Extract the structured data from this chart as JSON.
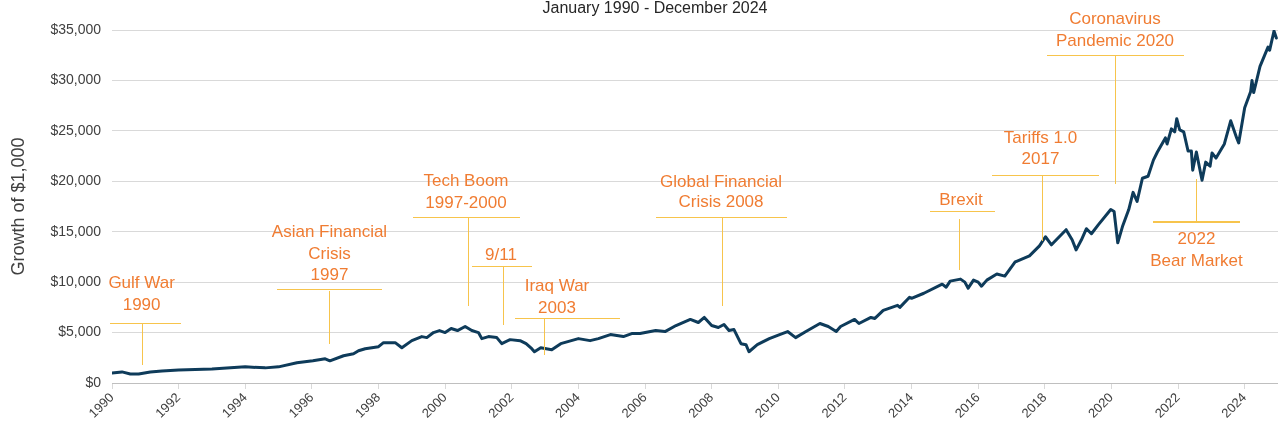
{
  "chart_data": {
    "type": "line",
    "subtitle": "January 1990 - December 2024",
    "ylabel": "Growth of $1,000",
    "x": [
      1990.0,
      1990.3,
      1990.55,
      1990.8,
      1991.15,
      1991.5,
      1992.0,
      1993.0,
      1994.0,
      1994.6,
      1995.0,
      1995.55,
      1996.03,
      1996.4,
      1996.54,
      1996.95,
      1997.25,
      1997.4,
      1997.6,
      1998.0,
      1998.15,
      1998.5,
      1998.7,
      1999.0,
      1999.3,
      1999.45,
      1999.65,
      1999.83,
      2000.0,
      2000.18,
      2000.37,
      2000.6,
      2000.8,
      2001.0,
      2001.1,
      2001.3,
      2001.55,
      2001.7,
      2001.95,
      2002.25,
      2002.43,
      2002.6,
      2002.68,
      2002.87,
      2003.2,
      2003.47,
      2004.0,
      2004.35,
      2004.6,
      2004.96,
      2005.35,
      2005.6,
      2005.85,
      2006.32,
      2006.6,
      2006.93,
      2007.36,
      2007.6,
      2007.78,
      2008.0,
      2008.2,
      2008.37,
      2008.52,
      2008.67,
      2008.88,
      2009.03,
      2009.12,
      2009.37,
      2009.73,
      2010.04,
      2010.28,
      2010.52,
      2010.83,
      2011.25,
      2011.5,
      2011.74,
      2011.87,
      2012.29,
      2012.42,
      2012.78,
      2012.9,
      2013.15,
      2013.58,
      2013.65,
      2013.94,
      2014.0,
      2014.37,
      2014.92,
      2015.04,
      2015.16,
      2015.47,
      2015.6,
      2015.7,
      2015.86,
      2016.0,
      2016.1,
      2016.26,
      2016.56,
      2016.8,
      2017.11,
      2017.54,
      2017.84,
      2018.02,
      2018.2,
      2018.64,
      2018.82,
      2018.94,
      2019.1,
      2019.25,
      2019.4,
      2019.61,
      2019.98,
      2020.08,
      2020.19,
      2020.34,
      2020.52,
      2020.65,
      2020.77,
      2020.93,
      2021.1,
      2021.26,
      2021.38,
      2021.62,
      2021.67,
      2021.8,
      2021.9,
      2021.96,
      2022.05,
      2022.17,
      2022.3,
      2022.4,
      2022.44,
      2022.55,
      2022.72,
      2022.83,
      2022.96,
      2023.02,
      2023.14,
      2023.39,
      2023.58,
      2023.76,
      2023.82,
      2024.0,
      2024.18,
      2024.22,
      2024.27,
      2024.46,
      2024.7,
      2024.75,
      2024.88,
      2024.95
    ],
    "series": [
      {
        "color": "#0e3b5a",
        "values": [
          1000,
          1100,
          900,
          900,
          1100,
          1200,
          1300,
          1400,
          1600,
          1500,
          1600,
          2000,
          2200,
          2400,
          2200,
          2700,
          2900,
          3200,
          3400,
          3600,
          4000,
          4000,
          3500,
          4200,
          4600,
          4500,
          5000,
          5200,
          5000,
          5400,
          5200,
          5600,
          5200,
          5000,
          4400,
          4600,
          4500,
          3900,
          4300,
          4200,
          3900,
          3400,
          3100,
          3500,
          3300,
          3900,
          4400,
          4200,
          4400,
          4800,
          4600,
          4900,
          4900,
          5200,
          5100,
          5700,
          6300,
          6000,
          6500,
          5700,
          5500,
          5800,
          5200,
          5300,
          3900,
          3800,
          3100,
          3800,
          4400,
          4800,
          5100,
          4500,
          5100,
          5900,
          5600,
          5100,
          5600,
          6300,
          5900,
          6500,
          6400,
          7200,
          7700,
          7500,
          8500,
          8400,
          8900,
          9800,
          9500,
          10100,
          10300,
          10000,
          9400,
          10200,
          10000,
          9600,
          10200,
          10800,
          10600,
          12000,
          12600,
          13600,
          14500,
          13700,
          15200,
          14200,
          13200,
          14200,
          15300,
          14800,
          15700,
          17200,
          17000,
          13900,
          15600,
          17200,
          18900,
          18000,
          20300,
          20500,
          22100,
          22900,
          24300,
          23700,
          25200,
          24900,
          26200,
          25100,
          24900,
          23000,
          23000,
          21100,
          22900,
          20100,
          21900,
          21500,
          22800,
          22300,
          23700,
          26000,
          24300,
          23800,
          27300,
          28900,
          30000,
          28800,
          31400,
          33300,
          33000,
          34900,
          34200
        ]
      }
    ],
    "xlim": [
      1990,
      2025
    ],
    "xticks": [
      1990,
      1992,
      1994,
      1996,
      1998,
      2000,
      2002,
      2004,
      2006,
      2008,
      2010,
      2012,
      2014,
      2016,
      2018,
      2020,
      2022,
      2024
    ],
    "ylim": [
      0,
      35000
    ],
    "yticks": [
      {
        "value": 0,
        "label": "$0"
      },
      {
        "value": 5000,
        "label": "$5,000"
      },
      {
        "value": 10000,
        "label": "$10,000"
      },
      {
        "value": 15000,
        "label": "$15,000"
      },
      {
        "value": 20000,
        "label": "$20,000"
      },
      {
        "value": 25000,
        "label": "$25,000"
      },
      {
        "value": 30000,
        "label": "$30,000"
      },
      {
        "value": 35000,
        "label": "$35,000"
      }
    ],
    "grid": "y",
    "annotations": [
      "Gulf War 1990",
      "Asian Financial Crisis 1997",
      "Tech Boom 1997-2000",
      "9/11",
      "Iraq War 2003",
      "Global Financial Crisis 2008",
      "Brexit",
      "Tariffs 1.0 2017",
      "Coronavirus Pandemic 2020",
      "2022 Bear Market"
    ]
  }
}
